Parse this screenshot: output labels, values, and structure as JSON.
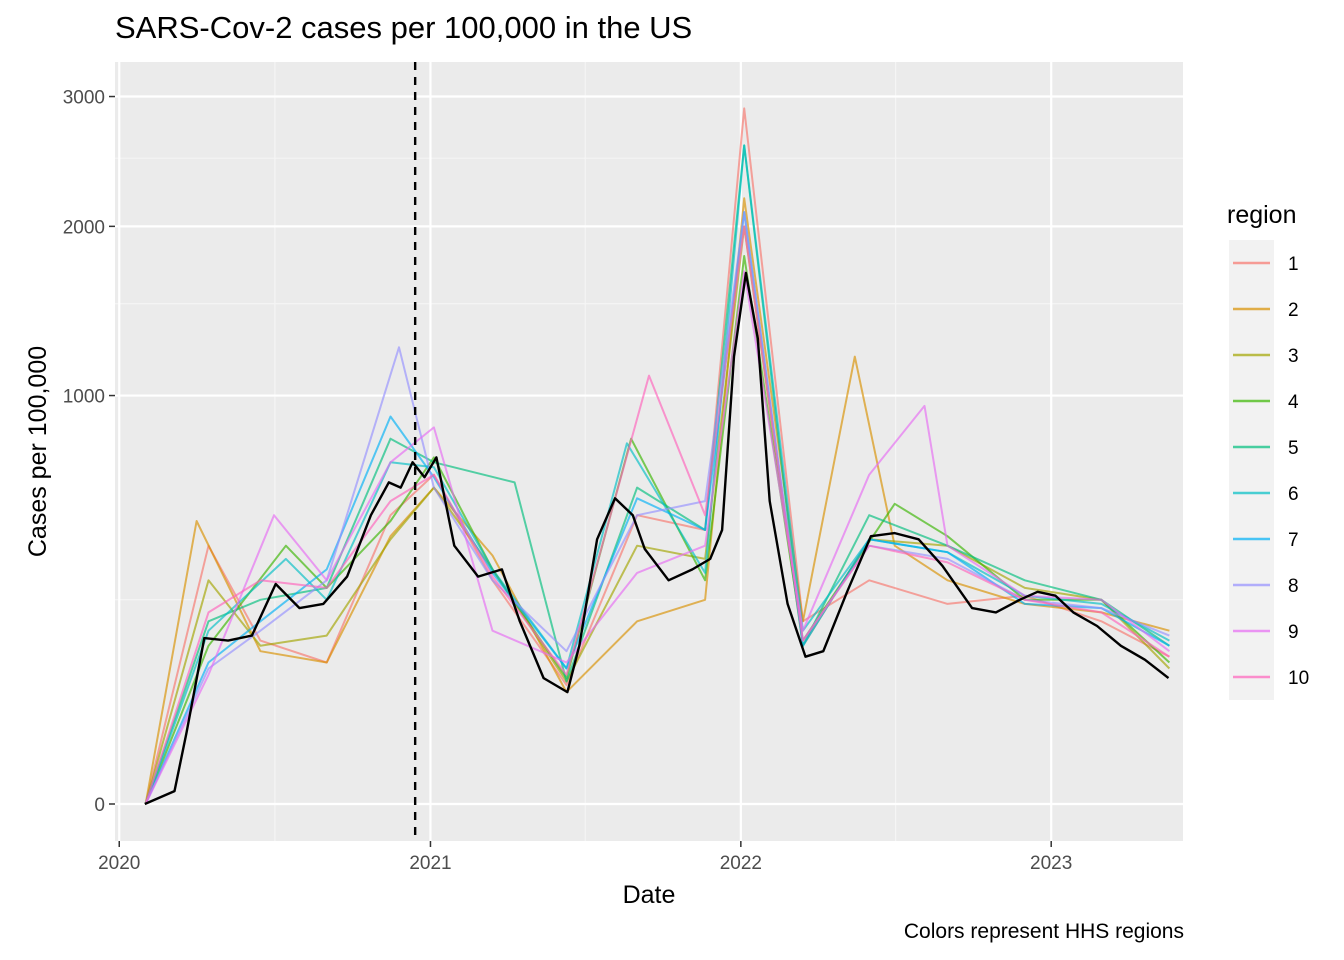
{
  "chart_data": {
    "type": "line",
    "title": "SARS-Cov-2 cases per 100,000 in the US",
    "xlabel": "Date",
    "ylabel": "Cases per 100,000",
    "caption": "Colors represent HHS regions",
    "x_ticks": [
      "2020",
      "2021",
      "2022",
      "2023"
    ],
    "y_ticks": [
      "0",
      "1000",
      "2000",
      "3000"
    ],
    "y_scale": "sqrt",
    "ylim": [
      0,
      3300
    ],
    "xlim": [
      "2019-12-27",
      "2023-06-05"
    ],
    "vline_date": "2020-12-14",
    "legend": {
      "title": "region",
      "position": "right",
      "items": [
        "1",
        "2",
        "3",
        "4",
        "5",
        "6",
        "7",
        "8",
        "9",
        "10"
      ],
      "colors": [
        "#F8766D",
        "#D89000",
        "#A3A500",
        "#39B600",
        "#00BF7D",
        "#00BFC4",
        "#00B0F6",
        "#9590FF",
        "#E76BF3",
        "#FF62BC"
      ]
    },
    "national_mean_color": "#000000",
    "grid": true,
    "national_mean": {
      "name": "",
      "x": [
        "2020-01-31",
        "2020-03-06",
        "2020-03-20",
        "2020-04-10",
        "2020-05-08",
        "2020-06-05",
        "2020-07-03",
        "2020-07-31",
        "2020-08-28",
        "2020-09-25",
        "2020-10-23",
        "2020-11-13",
        "2020-11-27",
        "2020-12-11",
        "2020-12-25",
        "2021-01-08",
        "2021-01-29",
        "2021-02-26",
        "2021-03-26",
        "2021-04-16",
        "2021-05-14",
        "2021-06-11",
        "2021-06-25",
        "2021-07-16",
        "2021-08-06",
        "2021-08-27",
        "2021-09-10",
        "2021-10-08",
        "2021-11-05",
        "2021-11-26",
        "2021-12-10",
        "2021-12-24",
        "2022-01-07",
        "2022-01-21",
        "2022-02-04",
        "2022-02-25",
        "2022-03-18",
        "2022-04-08",
        "2022-05-06",
        "2022-06-03",
        "2022-07-01",
        "2022-07-29",
        "2022-08-26",
        "2022-09-30",
        "2022-10-28",
        "2022-11-25",
        "2022-12-16",
        "2023-01-06",
        "2023-01-27",
        "2023-02-24",
        "2023-03-24",
        "2023-04-21",
        "2023-05-19"
      ],
      "y": [
        0,
        1,
        30,
        165,
        160,
        170,
        290,
        230,
        240,
        310,
        500,
        620,
        600,
        700,
        640,
        720,
        400,
        310,
        330,
        200,
        95,
        75,
        150,
        420,
        560,
        500,
        390,
        300,
        330,
        360,
        450,
        1200,
        1690,
        1300,
        550,
        240,
        130,
        140,
        270,
        430,
        440,
        420,
        340,
        230,
        220,
        250,
        270,
        260,
        220,
        190,
        150,
        125,
        95
      ]
    },
    "regions": [
      {
        "name": "1",
        "x": [
          "2020-02-01",
          "2020-04-15",
          "2020-06-15",
          "2020-09-01",
          "2020-11-15",
          "2021-01-05",
          "2021-03-15",
          "2021-06-10",
          "2021-09-01",
          "2021-11-20",
          "2022-01-05",
          "2022-03-15",
          "2022-06-01",
          "2022-09-01",
          "2022-12-01",
          "2023-03-01",
          "2023-05-20"
        ],
        "y": [
          0,
          400,
          160,
          120,
          500,
          650,
          300,
          85,
          500,
          450,
          2900,
          200,
          300,
          240,
          260,
          200,
          130
        ]
      },
      {
        "name": "2",
        "x": [
          "2020-02-01",
          "2020-04-01",
          "2020-06-15",
          "2020-09-01",
          "2020-11-15",
          "2021-01-05",
          "2021-03-15",
          "2021-06-10",
          "2021-09-01",
          "2021-11-20",
          "2022-01-05",
          "2022-03-15",
          "2022-05-15",
          "2022-07-01",
          "2022-09-01",
          "2022-12-01",
          "2023-03-01",
          "2023-05-20"
        ],
        "y": [
          0,
          480,
          140,
          120,
          430,
          600,
          370,
          75,
          200,
          250,
          2200,
          200,
          1200,
          400,
          300,
          240,
          220,
          180
        ]
      },
      {
        "name": "3",
        "x": [
          "2020-02-01",
          "2020-04-15",
          "2020-06-15",
          "2020-09-01",
          "2020-11-15",
          "2021-01-05",
          "2021-03-15",
          "2021-06-10",
          "2021-09-01",
          "2021-11-20",
          "2022-01-05",
          "2022-03-15",
          "2022-06-01",
          "2022-09-01",
          "2022-12-01",
          "2023-03-01",
          "2023-05-20"
        ],
        "y": [
          0,
          300,
          150,
          170,
          420,
          600,
          330,
          90,
          400,
          360,
          2000,
          150,
          420,
          400,
          280,
          250,
          110
        ]
      },
      {
        "name": "4",
        "x": [
          "2020-02-01",
          "2020-04-15",
          "2020-07-15",
          "2020-09-01",
          "2020-11-15",
          "2021-01-05",
          "2021-03-15",
          "2021-06-10",
          "2021-08-25",
          "2021-11-20",
          "2022-01-05",
          "2022-03-15",
          "2022-07-01",
          "2022-09-01",
          "2022-12-01",
          "2023-03-01",
          "2023-05-20"
        ],
        "y": [
          0,
          150,
          400,
          280,
          480,
          720,
          330,
          95,
          800,
          300,
          1800,
          160,
          540,
          430,
          250,
          250,
          120
        ]
      },
      {
        "name": "5",
        "x": [
          "2020-02-01",
          "2020-04-15",
          "2020-06-15",
          "2020-09-01",
          "2020-11-15",
          "2021-01-05",
          "2021-04-10",
          "2021-06-10",
          "2021-09-01",
          "2021-11-20",
          "2022-01-05",
          "2022-03-15",
          "2022-06-01",
          "2022-09-01",
          "2022-12-01",
          "2023-03-01",
          "2023-05-20"
        ],
        "y": [
          0,
          200,
          250,
          280,
          800,
          700,
          620,
          90,
          600,
          450,
          2600,
          150,
          500,
          400,
          300,
          250,
          150
        ]
      },
      {
        "name": "6",
        "x": [
          "2020-02-01",
          "2020-04-15",
          "2020-07-15",
          "2020-09-01",
          "2020-11-15",
          "2021-01-05",
          "2021-03-15",
          "2021-06-10",
          "2021-08-20",
          "2021-11-20",
          "2022-01-05",
          "2022-03-15",
          "2022-06-01",
          "2022-09-01",
          "2022-12-01",
          "2023-03-01",
          "2023-05-20"
        ],
        "y": [
          0,
          180,
          360,
          250,
          700,
          680,
          330,
          110,
          780,
          320,
          2600,
          180,
          420,
          380,
          260,
          240,
          160
        ]
      },
      {
        "name": "7",
        "x": [
          "2020-02-01",
          "2020-04-15",
          "2020-06-15",
          "2020-09-01",
          "2020-11-15",
          "2021-01-05",
          "2021-03-15",
          "2021-06-10",
          "2021-09-01",
          "2021-11-20",
          "2022-01-05",
          "2022-03-15",
          "2022-06-01",
          "2022-09-01",
          "2022-12-01",
          "2023-03-01",
          "2023-05-20"
        ],
        "y": [
          0,
          120,
          200,
          330,
          900,
          640,
          320,
          110,
          560,
          450,
          2100,
          150,
          420,
          380,
          240,
          230,
          150
        ]
      },
      {
        "name": "8",
        "x": [
          "2020-02-01",
          "2020-04-15",
          "2020-06-15",
          "2020-09-01",
          "2020-11-25",
          "2021-01-05",
          "2021-03-15",
          "2021-06-10",
          "2021-09-01",
          "2021-11-20",
          "2022-01-05",
          "2022-03-15",
          "2022-06-01",
          "2022-09-01",
          "2022-12-01",
          "2023-03-01",
          "2023-05-20"
        ],
        "y": [
          0,
          110,
          180,
          300,
          1250,
          600,
          300,
          140,
          500,
          550,
          2100,
          160,
          400,
          360,
          250,
          230,
          170
        ]
      },
      {
        "name": "9",
        "x": [
          "2020-02-01",
          "2020-04-15",
          "2020-07-01",
          "2020-09-01",
          "2020-11-15",
          "2021-01-05",
          "2021-03-15",
          "2021-06-10",
          "2021-09-01",
          "2021-11-20",
          "2022-01-05",
          "2022-03-15",
          "2022-06-01",
          "2022-08-05",
          "2022-09-01",
          "2022-12-01",
          "2023-03-01",
          "2023-05-20"
        ],
        "y": [
          0,
          100,
          500,
          300,
          700,
          850,
          180,
          120,
          320,
          400,
          1700,
          180,
          650,
          950,
          400,
          260,
          250,
          140
        ]
      },
      {
        "name": "10",
        "x": [
          "2020-02-01",
          "2020-04-15",
          "2020-06-15",
          "2020-09-01",
          "2020-11-15",
          "2021-01-05",
          "2021-03-15",
          "2021-06-10",
          "2021-09-15",
          "2021-11-20",
          "2022-01-05",
          "2022-03-15",
          "2022-06-01",
          "2022-09-01",
          "2022-12-01",
          "2023-03-01",
          "2023-05-20"
        ],
        "y": [
          0,
          220,
          300,
          280,
          550,
          650,
          310,
          100,
          1100,
          500,
          2000,
          160,
          400,
          350,
          250,
          220,
          130
        ]
      }
    ]
  }
}
